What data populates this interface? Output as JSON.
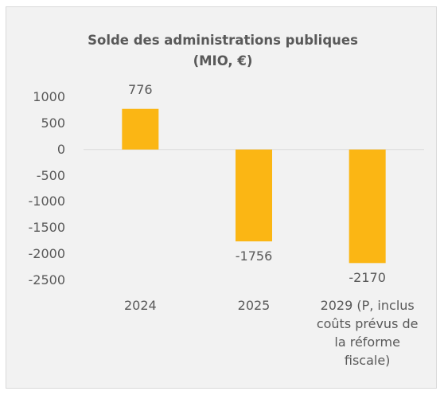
{
  "chart_data": {
    "type": "bar",
    "title": "Solde des administrations publiques (MIO, €)",
    "categories": [
      "2024",
      "2025",
      "2029 (P, inclus coûts prévus de la réforme fiscale)"
    ],
    "values": [
      776,
      -1756,
      -2170
    ],
    "color": "#fbb614",
    "ylim": [
      -2500,
      1000
    ],
    "yticks": [
      1000,
      500,
      0,
      -500,
      -1000,
      -1500,
      -2000,
      -2500
    ],
    "grid": false
  }
}
